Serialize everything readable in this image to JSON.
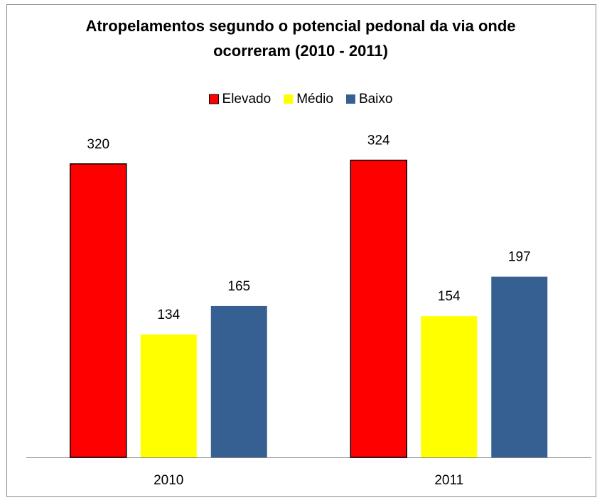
{
  "chart_data": {
    "type": "bar",
    "title": "Atropelamentos segundo o potencial pedonal da via onde ocorreram (2010 - 2011)",
    "categories": [
      "2010",
      "2011"
    ],
    "series": [
      {
        "name": "Elevado",
        "color": "#ff0000",
        "values": [
          320,
          324
        ]
      },
      {
        "name": "Médio",
        "color": "#ffff00",
        "values": [
          134,
          154
        ]
      },
      {
        "name": "Baixo",
        "color": "#376092",
        "values": [
          165,
          197
        ]
      }
    ],
    "ylim": [
      0,
      350
    ],
    "legend": "top"
  }
}
